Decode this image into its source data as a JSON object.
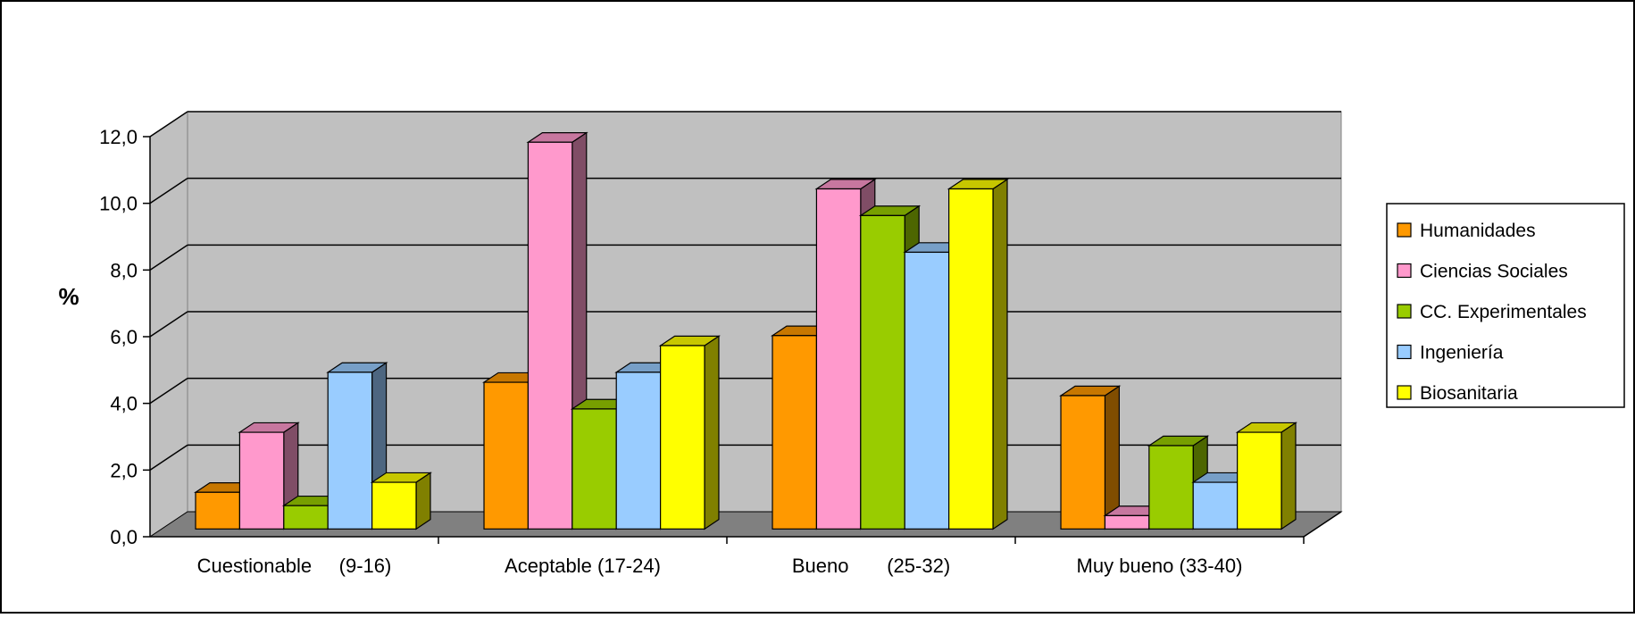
{
  "chart_data": {
    "type": "bar",
    "title": "",
    "xlabel": "",
    "ylabel": "%",
    "ylim": [
      0,
      12
    ],
    "y_ticks": [
      "0,0",
      "2,0",
      "4,0",
      "6,0",
      "8,0",
      "10,0",
      "12,0"
    ],
    "grid": true,
    "legend_position": "right",
    "categories": [
      "Cuestionable     (9-16)",
      "Aceptable (17-24)",
      "Bueno       (25-32)",
      "Muy bueno (33-40)"
    ],
    "series": [
      {
        "name": "Humanidades",
        "color": "#FF9900",
        "values": [
          1.1,
          4.4,
          5.8,
          4.0
        ]
      },
      {
        "name": "Ciencias Sociales",
        "color": "#FF99CC",
        "values": [
          2.9,
          11.6,
          10.2,
          0.4
        ]
      },
      {
        "name": "CC. Experimentales",
        "color": "#99CC00",
        "values": [
          0.7,
          3.6,
          9.4,
          2.5
        ]
      },
      {
        "name": "Ingeniería",
        "color": "#99CCFF",
        "values": [
          4.7,
          4.7,
          8.3,
          1.4
        ]
      },
      {
        "name": "Biosanitaria",
        "color": "#FFFF00",
        "values": [
          1.4,
          5.5,
          10.2,
          2.9
        ]
      }
    ]
  }
}
